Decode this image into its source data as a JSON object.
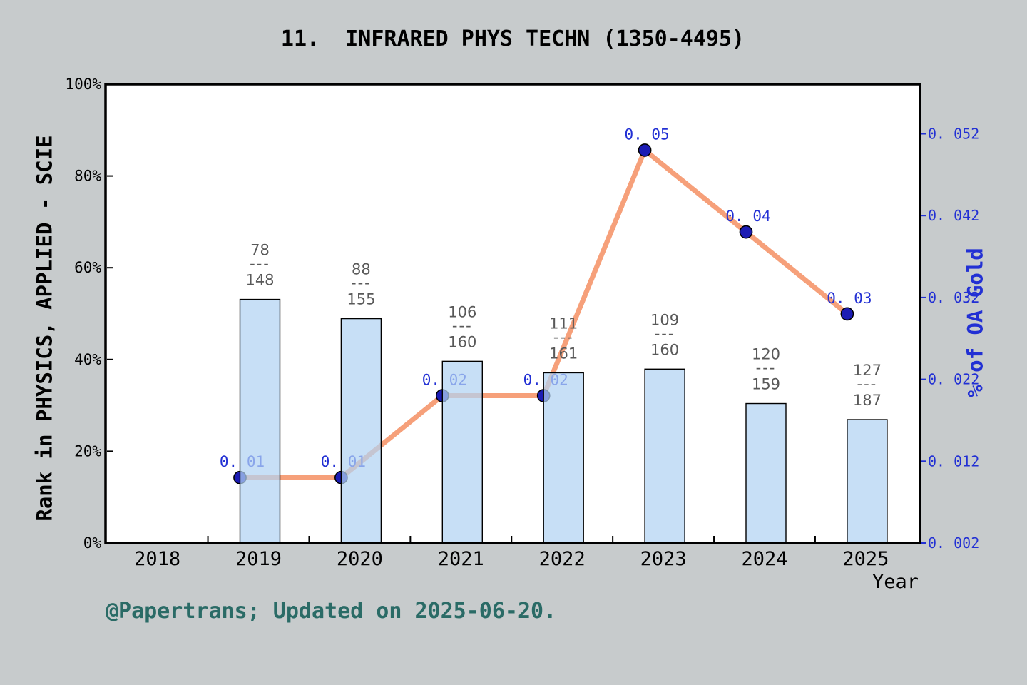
{
  "title": "11.  INFRARED PHYS TECHN (1350-4495)",
  "footer": "@Papertrans; Updated on 2025-06-20.",
  "colors": {
    "background": "#c7cbcc",
    "plot_background": "#ffffff",
    "frame": "#000000",
    "bar_fill": "#b2d3f2",
    "bar_alpha": 0.72,
    "bar_edge": "#000000",
    "bar_label": "#595959",
    "line": "#f6a07a",
    "marker": "#1c1cb4",
    "marker_edge": "#000000",
    "value_label": "#2230d4",
    "right_axis": "#2230d4",
    "left_axis": "#000000",
    "footer_text": "#2a6b66"
  },
  "chart_data": {
    "type": "bar+line",
    "title": "11.  INFRARED PHYS TECHN (1350-4495)",
    "categories": [
      "2019",
      "2020",
      "2021",
      "2022",
      "2023",
      "2024",
      "2025"
    ],
    "grid": false,
    "legend": false,
    "axes": {
      "x": {
        "label": "Year",
        "ticks": [
          "2018",
          "2019",
          "2020",
          "2021",
          "2022",
          "2023",
          "2024",
          "2025"
        ]
      },
      "left": {
        "label": "Rank in PHYSICS, APPLIED - SCIE",
        "ticks": [
          "0%",
          "20%",
          "40%",
          "60%",
          "80%",
          "100%"
        ],
        "range": [
          0,
          100
        ]
      },
      "right": {
        "label": "% of OA Gold",
        "ticks": [
          "0. 002",
          "0. 012",
          "0. 022",
          "0. 032",
          "0. 042",
          "0. 052"
        ],
        "range": [
          0.002,
          0.052
        ]
      }
    },
    "series": [
      {
        "name": "Rank in PHYSICS, APPLIED - SCIE",
        "type": "bar",
        "axis": "left",
        "unit": "%",
        "values_percent": [
          53.1,
          48.9,
          39.6,
          37.1,
          37.9,
          30.4,
          26.9
        ],
        "label_separator": "---",
        "bar_labels": [
          {
            "numerator": "78",
            "denominator": "148"
          },
          {
            "numerator": "88",
            "denominator": "155"
          },
          {
            "numerator": "106",
            "denominator": "160"
          },
          {
            "numerator": "111",
            "denominator": "161"
          },
          {
            "numerator": "109",
            "denominator": "160"
          },
          {
            "numerator": "120",
            "denominator": "159"
          },
          {
            "numerator": "127",
            "denominator": "187"
          }
        ]
      },
      {
        "name": "% of OA Gold",
        "type": "line",
        "axis": "right",
        "values": [
          0.01,
          0.01,
          0.02,
          0.02,
          0.05,
          0.04,
          0.03
        ],
        "point_labels": [
          "0. 01",
          "0. 01",
          "0. 02",
          "0. 02",
          "0. 05",
          "0. 04",
          "0. 03"
        ]
      }
    ]
  }
}
